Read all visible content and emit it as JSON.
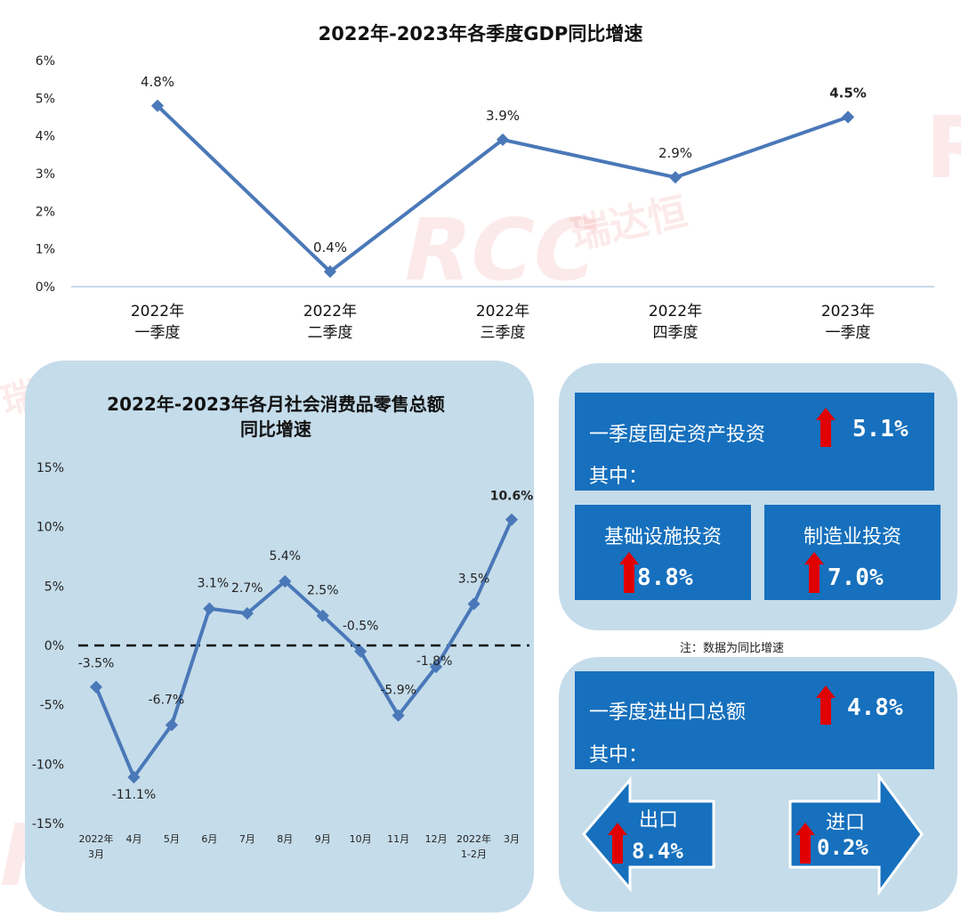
{
  "watermark": {
    "brand": "RCC",
    "brand_cn": "瑞达恒"
  },
  "colors": {
    "line": "#4a78b8",
    "panel": "#c5dcea",
    "box": "#1670bd",
    "arrow": "#e00000"
  },
  "chart_data": [
    {
      "type": "line",
      "title": "2022年-2023年各季度GDP同比增速",
      "categories": [
        [
          "2022年",
          "一季度"
        ],
        [
          "2022年",
          "二季度"
        ],
        [
          "2022年",
          "三季度"
        ],
        [
          "2022年",
          "四季度"
        ],
        [
          "2023年",
          "一季度"
        ]
      ],
      "values": [
        4.8,
        0.4,
        3.9,
        2.9,
        4.5
      ],
      "data_labels": [
        "4.8%",
        "0.4%",
        "3.9%",
        "2.9%",
        "4.5%"
      ],
      "ylim": [
        0,
        6
      ],
      "y_ticks": [
        "0%",
        "1%",
        "2%",
        "3%",
        "4%",
        "5%",
        "6%"
      ],
      "grid": false
    },
    {
      "type": "line",
      "title": "2022年-2023年各月社会消费品零售总额同比增速",
      "title_lines": [
        "2022年-2023年各月社会消费品零售总额",
        "同比增速"
      ],
      "categories": [
        [
          "2022年",
          "3月"
        ],
        [
          "4月"
        ],
        [
          "5月"
        ],
        [
          "6月"
        ],
        [
          "7月"
        ],
        [
          "8月"
        ],
        [
          "9月"
        ],
        [
          "10月"
        ],
        [
          "11月"
        ],
        [
          "12月"
        ],
        [
          "2022年",
          "1-2月"
        ],
        [
          "3月"
        ]
      ],
      "values": [
        -3.5,
        -11.1,
        -6.7,
        3.1,
        2.7,
        5.4,
        2.5,
        -0.5,
        -5.9,
        -1.8,
        3.5,
        10.6
      ],
      "data_labels": [
        "-3.5%",
        "-11.1%",
        "-6.7%",
        "3.1%",
        "2.7%",
        "5.4%",
        "2.5%",
        "-0.5%",
        "-5.9%",
        "-1.8%",
        "3.5%",
        "10.6%"
      ],
      "ylim": [
        -15,
        15
      ],
      "y_ticks": [
        "-15%",
        "-10%",
        "-5%",
        "0%",
        "5%",
        "10%",
        "15%"
      ],
      "zero_line": "dashed",
      "grid": false
    }
  ],
  "investment": {
    "title": "一季度固定资产投资",
    "value": "5.1%",
    "sub_label": "其中：",
    "items": [
      {
        "label": "基础设施投资",
        "value": "8.8%"
      },
      {
        "label": "制造业投资",
        "value": "7.0%"
      }
    ]
  },
  "note": "注：数据为同比增速",
  "trade": {
    "title": "一季度进出口总额",
    "value": "4.8%",
    "sub_label": "其中：",
    "export": {
      "label": "出口",
      "value": "8.4%"
    },
    "import": {
      "label": "进口",
      "value": "0.2%"
    }
  }
}
